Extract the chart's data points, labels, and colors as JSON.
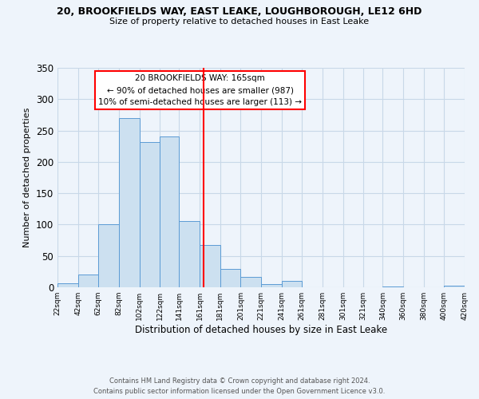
{
  "title_line1": "20, BROOKFIELDS WAY, EAST LEAKE, LOUGHBOROUGH, LE12 6HD",
  "title_line2": "Size of property relative to detached houses in East Leake",
  "xlabel": "Distribution of detached houses by size in East Leake",
  "ylabel": "Number of detached properties",
  "bar_color": "#cce0f0",
  "bar_edge_color": "#5b9bd5",
  "vline_x": 165,
  "vline_color": "red",
  "annotation_title": "20 BROOKFIELDS WAY: 165sqm",
  "annotation_line1": "← 90% of detached houses are smaller (987)",
  "annotation_line2": "10% of semi-detached houses are larger (113) →",
  "annotation_box_color": "white",
  "annotation_box_edge": "red",
  "bins_left": [
    22,
    42,
    62,
    82,
    102,
    122,
    141,
    161,
    181,
    201,
    221,
    241,
    261,
    281,
    301,
    321,
    340,
    360,
    380,
    400
  ],
  "bins_right": [
    42,
    62,
    82,
    102,
    122,
    141,
    161,
    181,
    201,
    221,
    241,
    261,
    281,
    301,
    321,
    340,
    360,
    380,
    400,
    420
  ],
  "heights": [
    7,
    20,
    100,
    270,
    231,
    241,
    106,
    68,
    29,
    16,
    5,
    10,
    0,
    0,
    0,
    0,
    1,
    0,
    0,
    2
  ],
  "xlim_left": 22,
  "xlim_right": 420,
  "ylim_top": 350,
  "yticks": [
    0,
    50,
    100,
    150,
    200,
    250,
    300,
    350
  ],
  "xtick_labels": [
    "22sqm",
    "42sqm",
    "62sqm",
    "82sqm",
    "102sqm",
    "122sqm",
    "141sqm",
    "161sqm",
    "181sqm",
    "201sqm",
    "221sqm",
    "241sqm",
    "261sqm",
    "281sqm",
    "301sqm",
    "321sqm",
    "340sqm",
    "360sqm",
    "380sqm",
    "400sqm",
    "420sqm"
  ],
  "footer_line1": "Contains HM Land Registry data © Crown copyright and database right 2024.",
  "footer_line2": "Contains public sector information licensed under the Open Government Licence v3.0.",
  "background_color": "#eef4fb"
}
